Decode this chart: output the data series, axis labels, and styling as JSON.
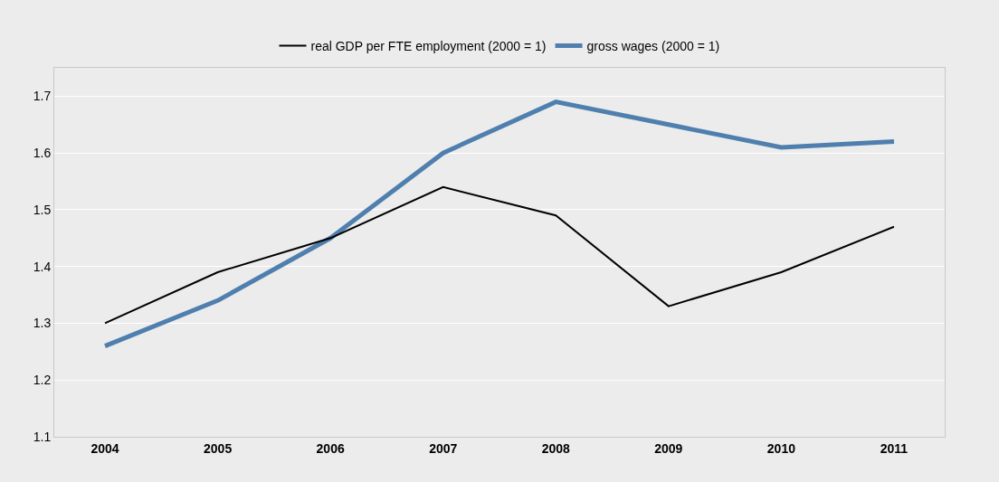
{
  "chart_data": {
    "type": "line",
    "categories": [
      "2004",
      "2005",
      "2006",
      "2007",
      "2008",
      "2009",
      "2010",
      "2011"
    ],
    "series": [
      {
        "name": "real GDP per FTE employment (2000 = 1)",
        "color": "#000000",
        "values": [
          1.3,
          1.39,
          1.45,
          1.54,
          1.49,
          1.33,
          1.39,
          1.47
        ]
      },
      {
        "name": "gross wages (2000 = 1)",
        "color": "#4f7fae",
        "values": [
          1.26,
          1.34,
          1.45,
          1.6,
          1.69,
          1.65,
          1.61,
          1.62
        ]
      }
    ],
    "ylim": [
      1.1,
      1.75
    ],
    "yticks": [
      1.1,
      1.2,
      1.3,
      1.4,
      1.5,
      1.6,
      1.7
    ],
    "grid": "y",
    "legend": "top",
    "marker": "none",
    "line_style": "solid"
  }
}
